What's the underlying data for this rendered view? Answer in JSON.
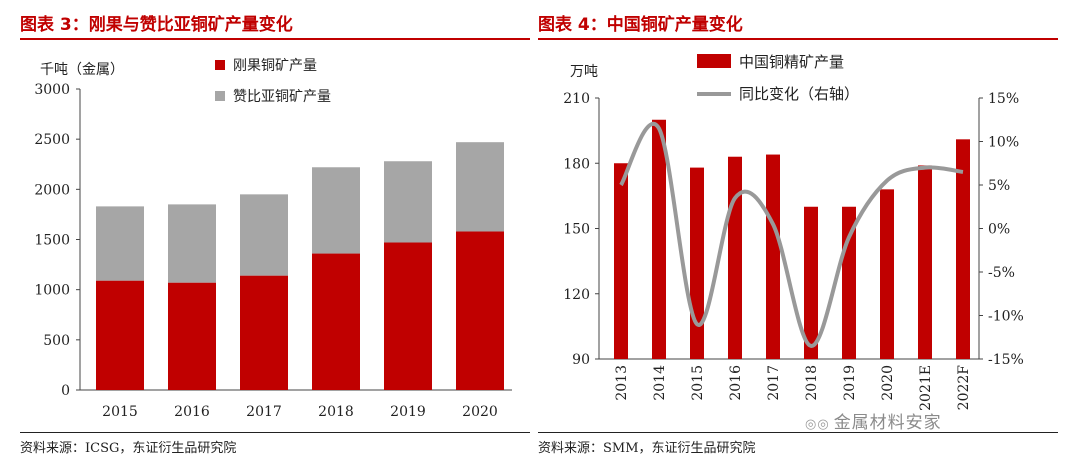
{
  "left_chart": {
    "title": "图表 3：刚果与赞比亚铜矿产量变化",
    "source": "资料来源：ICSG，东证衍生品研究院"
  },
  "right_chart": {
    "title": "图表 4：中国铜矿产量变化",
    "source": "资料来源：SMM，东证衍生品研究院"
  },
  "watermark": {
    "text": "金属材料安家",
    "icon": "wechat-icon"
  },
  "colors": {
    "red": "#c00000",
    "gray": "#a6a6a6",
    "line": "#999999",
    "title_red": "#c00000"
  },
  "chart_data": [
    {
      "type": "bar",
      "stacked": true,
      "unit_label": "千吨（金属）",
      "categories": [
        "2015",
        "2016",
        "2017",
        "2018",
        "2019",
        "2020"
      ],
      "series": [
        {
          "name": "刚果铜矿产量",
          "color": "#c00000",
          "values": [
            1090,
            1070,
            1140,
            1360,
            1470,
            1580
          ]
        },
        {
          "name": "赞比亚铜矿产量",
          "color": "#a6a6a6",
          "values": [
            740,
            780,
            810,
            860,
            810,
            890
          ]
        }
      ],
      "ylim": [
        0,
        3000
      ],
      "yticks": [
        "0",
        "500",
        "1000",
        "1500",
        "2000",
        "2500",
        "3000"
      ],
      "legend_position": "top"
    },
    {
      "type": "bar+line",
      "unit_label": "万吨",
      "categories": [
        "2013",
        "2014",
        "2015",
        "2016",
        "2017",
        "2018",
        "2019",
        "2020",
        "2021E",
        "2022F"
      ],
      "series": [
        {
          "name": "中国铜精矿产量",
          "type": "bar",
          "color": "#c00000",
          "axis": "left",
          "values": [
            180,
            200,
            178,
            183,
            184,
            160,
            160,
            168,
            179,
            191
          ]
        },
        {
          "name": "同比变化（右轴）",
          "type": "line",
          "color": "#999999",
          "axis": "right",
          "values": [
            5,
            11.5,
            -11,
            3.5,
            0.5,
            -13.5,
            -1,
            5.5,
            7,
            6.5
          ]
        }
      ],
      "ylim_left": [
        90,
        210
      ],
      "yticks_left": [
        "90",
        "120",
        "150",
        "180",
        "210"
      ],
      "ylim_right": [
        -15,
        15
      ],
      "yticks_right": [
        "-15%",
        "-10%",
        "-5%",
        "0%",
        "5%",
        "10%",
        "15%"
      ],
      "legend_position": "top"
    }
  ]
}
